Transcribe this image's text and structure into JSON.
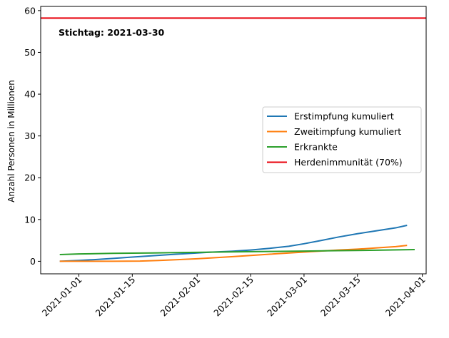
{
  "chart_data": {
    "type": "line",
    "title": "",
    "xlabel": "",
    "ylabel": "Anzahl Personen in Millionen",
    "x_axis_type": "date",
    "xlim": [
      "2020-12-22",
      "2021-04-02"
    ],
    "ylim": [
      -3,
      61
    ],
    "x_ticks": [
      "2021-01-01",
      "2021-01-15",
      "2021-02-01",
      "2021-02-15",
      "2021-03-01",
      "2021-03-15",
      "2021-04-01"
    ],
    "y_ticks": [
      0,
      10,
      20,
      30,
      40,
      50,
      60
    ],
    "grid": false,
    "legend_position": "center-right",
    "annotation": "Stichtag: 2021-03-30",
    "series": [
      {
        "name": "Erstimpfung kumuliert",
        "color": "#1f77b4",
        "points": [
          [
            "2020-12-27",
            0.0
          ],
          [
            "2021-01-01",
            0.2
          ],
          [
            "2021-01-05",
            0.4
          ],
          [
            "2021-01-10",
            0.7
          ],
          [
            "2021-01-15",
            1.0
          ],
          [
            "2021-01-20",
            1.3
          ],
          [
            "2021-01-25",
            1.6
          ],
          [
            "2021-02-01",
            2.0
          ],
          [
            "2021-02-05",
            2.2
          ],
          [
            "2021-02-10",
            2.4
          ],
          [
            "2021-02-15",
            2.7
          ],
          [
            "2021-02-20",
            3.1
          ],
          [
            "2021-02-25",
            3.6
          ],
          [
            "2021-03-01",
            4.2
          ],
          [
            "2021-03-05",
            4.9
          ],
          [
            "2021-03-10",
            5.8
          ],
          [
            "2021-03-15",
            6.6
          ],
          [
            "2021-03-20",
            7.3
          ],
          [
            "2021-03-25",
            8.0
          ],
          [
            "2021-03-28",
            8.6
          ]
        ]
      },
      {
        "name": "Zweitimpfung kumuliert",
        "color": "#ff7f0e",
        "points": [
          [
            "2020-12-27",
            0.0
          ],
          [
            "2021-01-10",
            0.0
          ],
          [
            "2021-01-17",
            0.05
          ],
          [
            "2021-01-22",
            0.2
          ],
          [
            "2021-02-01",
            0.6
          ],
          [
            "2021-02-10",
            1.1
          ],
          [
            "2021-02-15",
            1.4
          ],
          [
            "2021-02-20",
            1.7
          ],
          [
            "2021-03-01",
            2.2
          ],
          [
            "2021-03-10",
            2.7
          ],
          [
            "2021-03-15",
            2.9
          ],
          [
            "2021-03-20",
            3.2
          ],
          [
            "2021-03-25",
            3.5
          ],
          [
            "2021-03-28",
            3.8
          ]
        ]
      },
      {
        "name": "Erkrankte",
        "color": "#2ca02c",
        "points": [
          [
            "2020-12-27",
            1.6
          ],
          [
            "2021-01-01",
            1.75
          ],
          [
            "2021-01-10",
            1.9
          ],
          [
            "2021-01-20",
            2.0
          ],
          [
            "2021-02-01",
            2.15
          ],
          [
            "2021-02-10",
            2.25
          ],
          [
            "2021-02-20",
            2.35
          ],
          [
            "2021-03-01",
            2.45
          ],
          [
            "2021-03-10",
            2.55
          ],
          [
            "2021-03-20",
            2.65
          ],
          [
            "2021-03-30",
            2.8
          ]
        ]
      },
      {
        "name": "Herdenimmunität (70%)",
        "color": "#e8000b",
        "style": "horizontal-line",
        "y": 58.2
      }
    ]
  }
}
